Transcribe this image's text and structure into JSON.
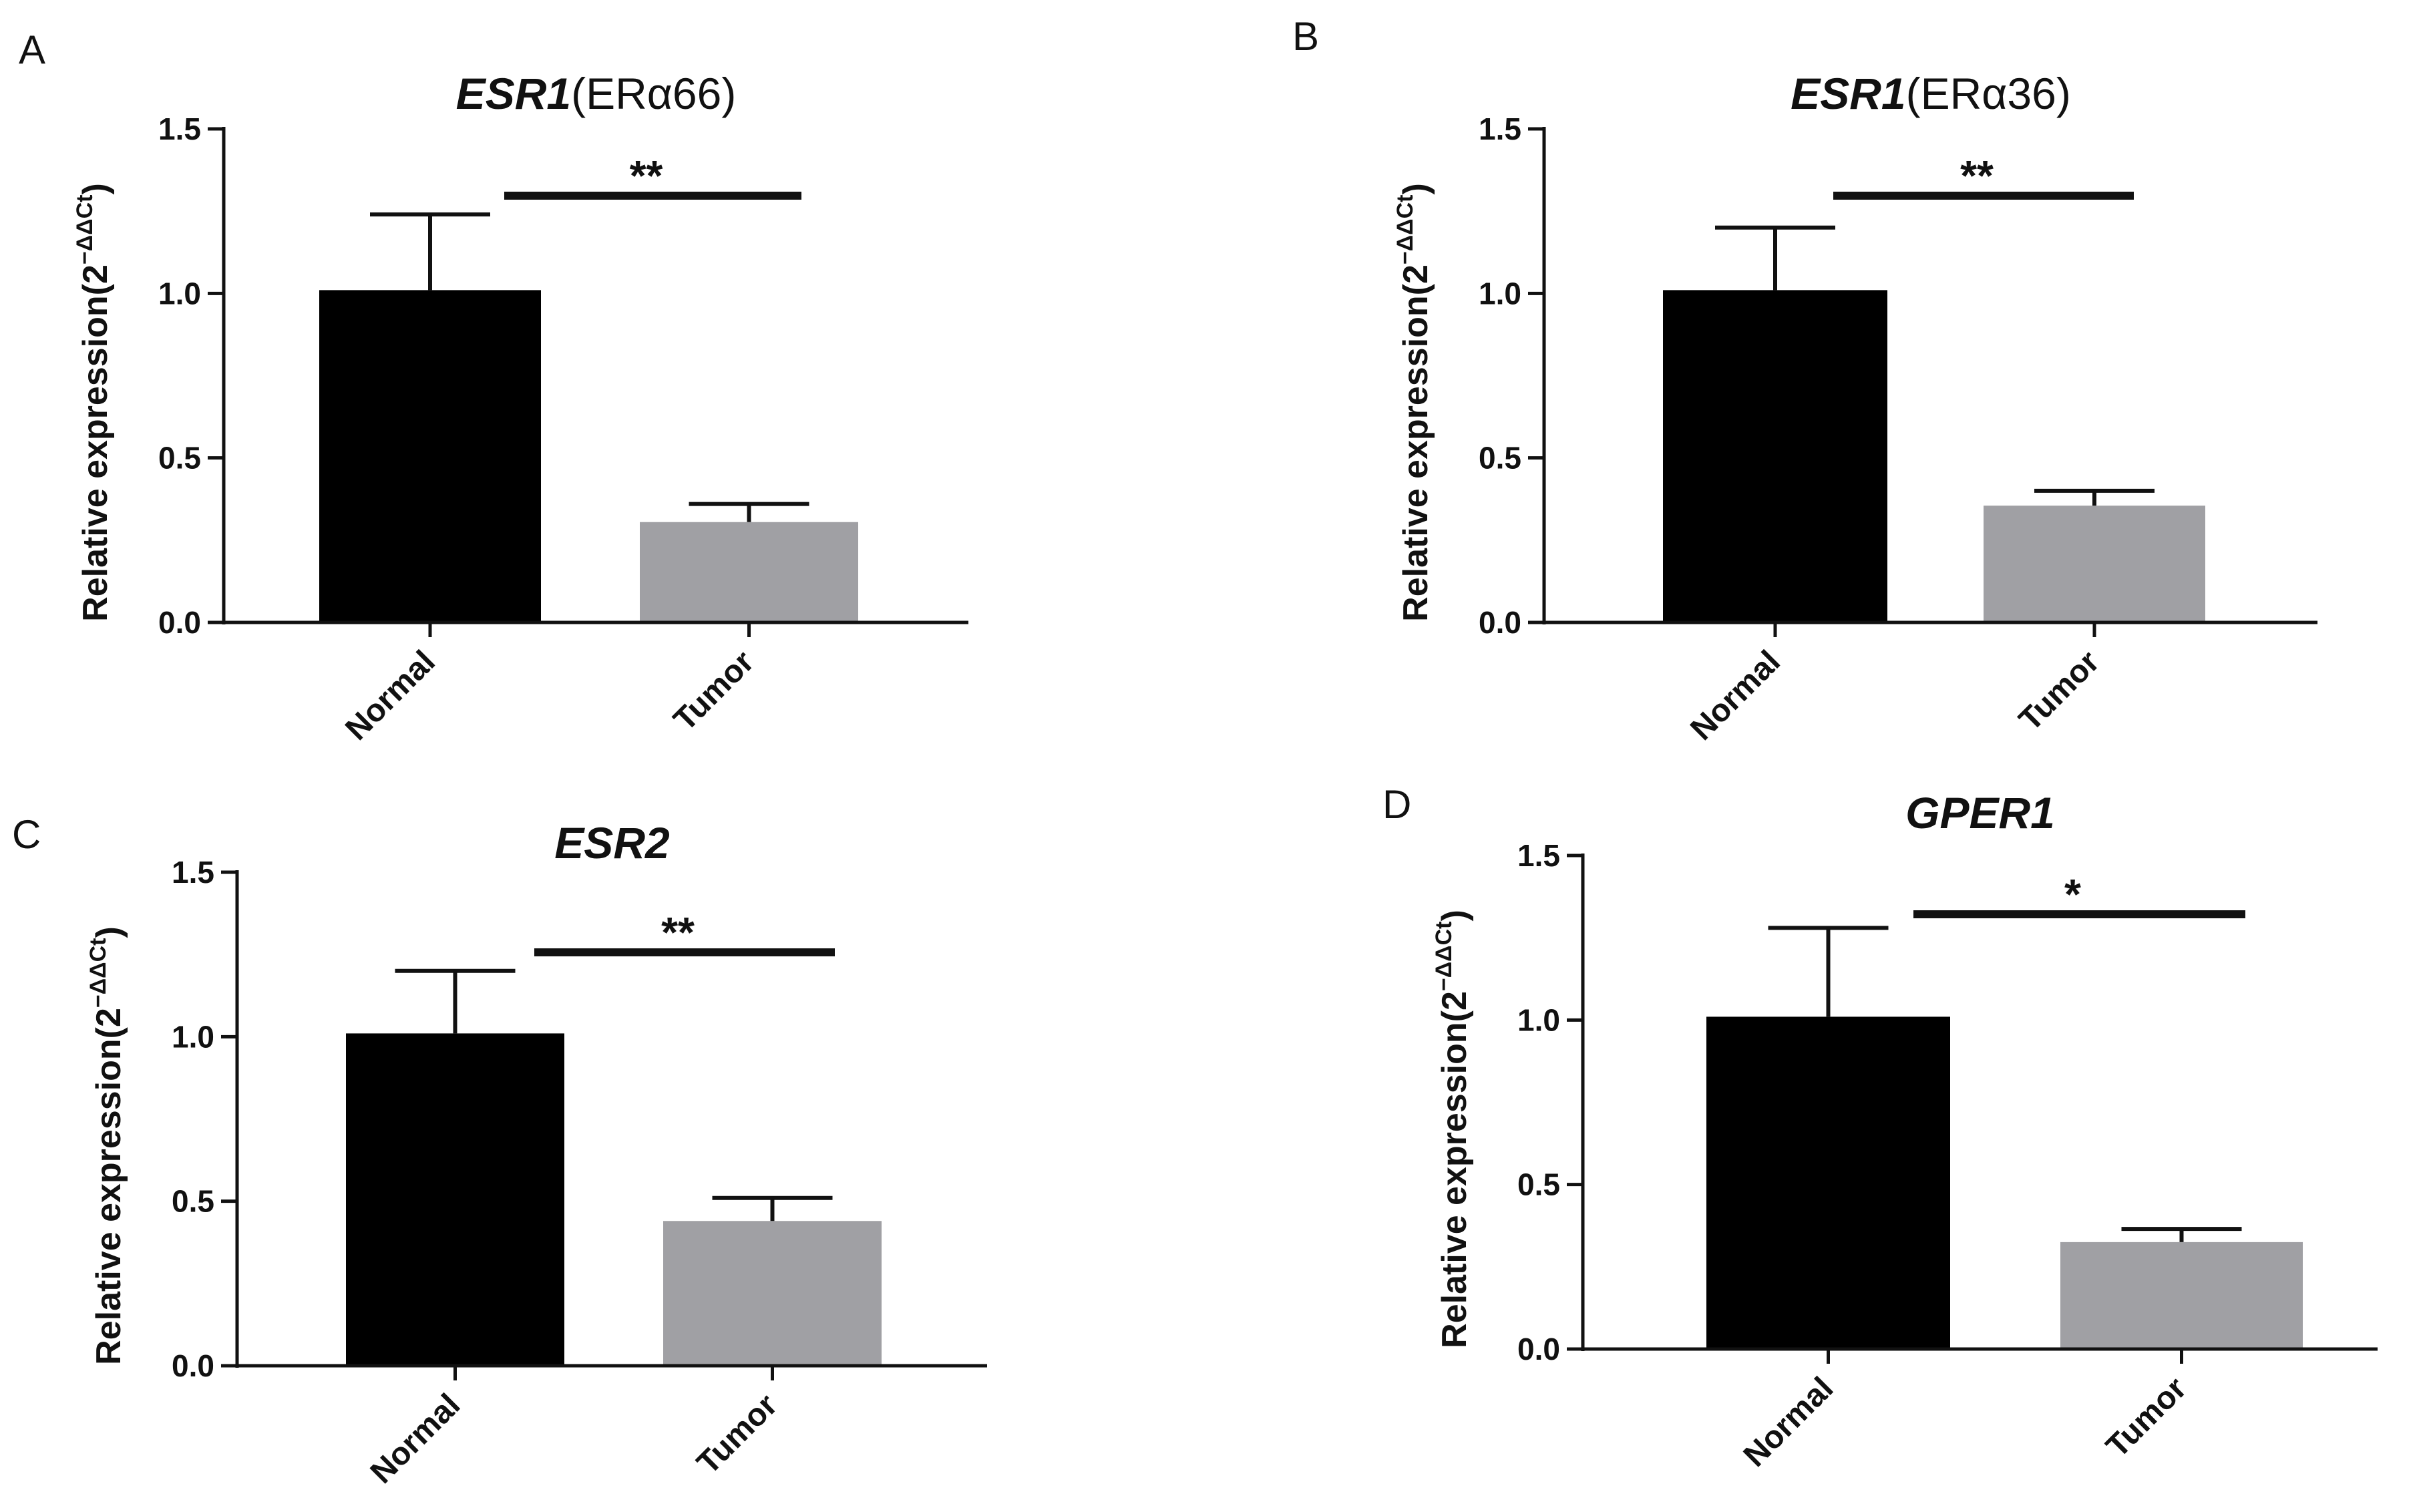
{
  "figure": {
    "background": "#ffffff",
    "normal_color": "#000000",
    "tumor_color": "#a0a0a4",
    "axis_color": "#111111"
  },
  "chart_data": [
    {
      "panel": "A",
      "type": "bar",
      "title_gene": "ESR1",
      "title_suffix": "(ERα66)",
      "ylabel": "Relative expression(2",
      "ylabel_sup": "−ΔΔCt",
      "ylabel_close": ")",
      "categories": [
        "Normal",
        "Tumor"
      ],
      "values": [
        1.01,
        0.305
      ],
      "errors": [
        0.23,
        0.055
      ],
      "ylim": [
        0,
        1.5
      ],
      "yticks": [
        "0.0",
        "0.5",
        "1.0",
        "1.5"
      ],
      "significance": "**"
    },
    {
      "panel": "B",
      "type": "bar",
      "title_gene": "ESR1",
      "title_suffix": "(ERα36)",
      "ylabel": "Relative expression(2",
      "ylabel_sup": "−ΔΔCt",
      "ylabel_close": ")",
      "categories": [
        "Normal",
        "Tumor"
      ],
      "values": [
        1.01,
        0.355
      ],
      "errors": [
        0.19,
        0.045
      ],
      "ylim": [
        0,
        1.5
      ],
      "yticks": [
        "0.0",
        "0.5",
        "1.0",
        "1.5"
      ],
      "significance": "**"
    },
    {
      "panel": "C",
      "type": "bar",
      "title_gene": "ESR2",
      "title_suffix": "",
      "ylabel": "Relative expression(2",
      "ylabel_sup": "−ΔΔCt",
      "ylabel_close": ")",
      "categories": [
        "Normal",
        "Tumor"
      ],
      "values": [
        1.01,
        0.44
      ],
      "errors": [
        0.19,
        0.07
      ],
      "ylim": [
        0,
        1.5
      ],
      "yticks": [
        "0.0",
        "0.5",
        "1.0",
        "1.5"
      ],
      "significance": "**"
    },
    {
      "panel": "D",
      "type": "bar",
      "title_gene": "GPER1",
      "title_suffix": "",
      "ylabel": "Relative expression(2",
      "ylabel_sup": "−ΔΔCt",
      "ylabel_close": ")",
      "categories": [
        "Normal",
        "Tumor"
      ],
      "values": [
        1.01,
        0.325
      ],
      "errors": [
        0.27,
        0.04
      ],
      "ylim": [
        0,
        1.5
      ],
      "yticks": [
        "0.0",
        "0.5",
        "1.0",
        "1.5"
      ],
      "significance": "*"
    }
  ]
}
